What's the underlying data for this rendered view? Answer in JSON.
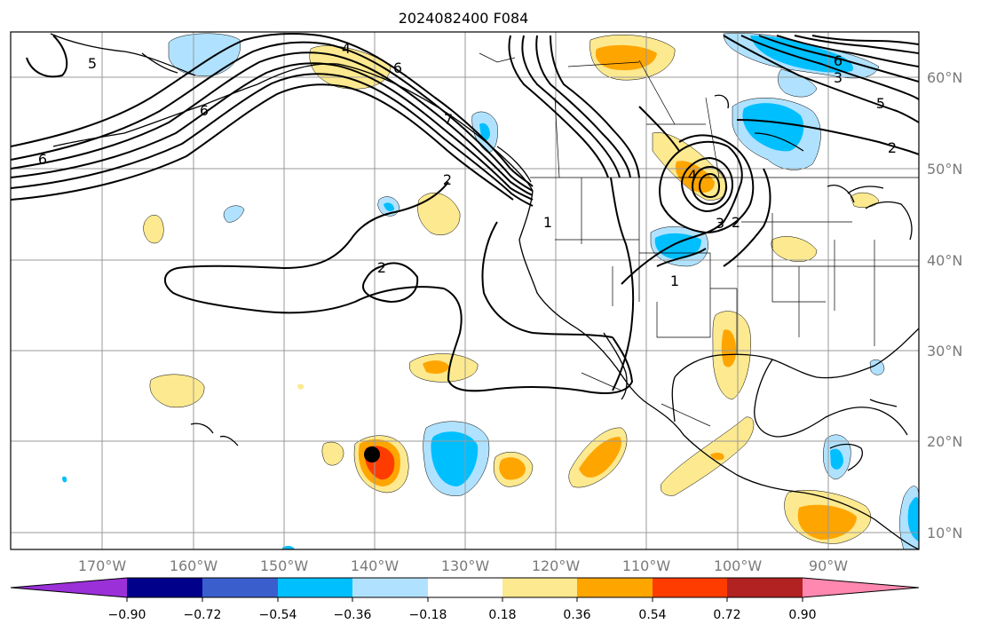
{
  "title": "2024082400 F084",
  "lon_labels": [
    "170°W",
    "160°W",
    "150°W",
    "140°W",
    "130°W",
    "120°W",
    "110°W",
    "100°W",
    "90°W"
  ],
  "lat_labels": [
    "10°N",
    "20°N",
    "30°N",
    "40°N",
    "50°N",
    "60°N"
  ],
  "colorbar": {
    "ticks": [
      "−0.90",
      "−0.72",
      "−0.54",
      "−0.36",
      "−0.18",
      "0.18",
      "0.36",
      "0.54",
      "0.72",
      "0.90"
    ],
    "colors": [
      "#9b30d9",
      "#00008b",
      "#3a5fcd",
      "#00bfff",
      "#b0e2ff",
      "#ffffff",
      "#fde98f",
      "#ffa500",
      "#ff3c00",
      "#b22222",
      "#ff88b0"
    ]
  },
  "contour_labels": [
    "5",
    "4",
    "6",
    "7",
    "6",
    "2",
    "1",
    "2",
    "4",
    "3",
    "2",
    "1",
    "6",
    "3",
    "2",
    "6",
    "5"
  ],
  "marker": {
    "name": "storm-center-marker",
    "color": "#000000"
  }
}
